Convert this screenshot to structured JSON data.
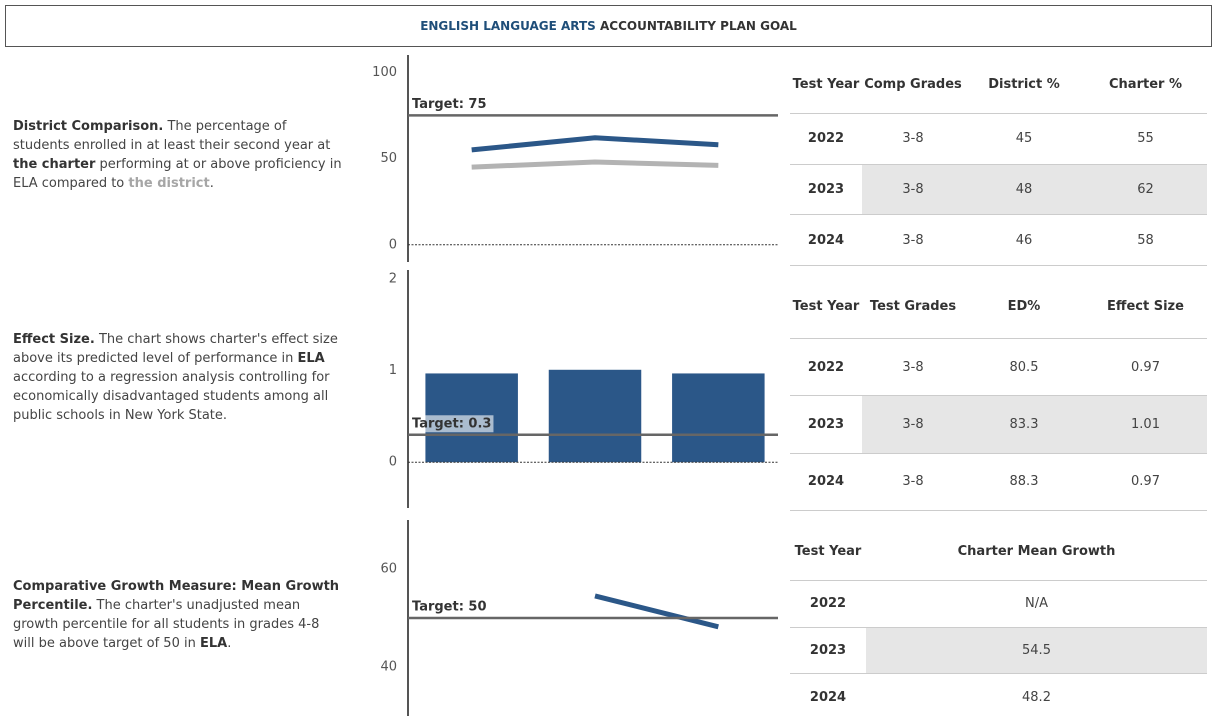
{
  "header": {
    "title_part1": "ENGLISH LANGUAGE ARTS",
    "title_part2": "ACCOUNTABILITY PLAN GOAL"
  },
  "sections": [
    {
      "description": [
        "District Comparison.",
        " The percentage of students enrolled in at least their second year at ",
        "the charter",
        " performing at or above proficiency in ELA compared to ",
        "the district",
        "."
      ]
    },
    {
      "description": [
        "Effect Size.",
        " The chart shows charter's effect size above its predicted level of performance in ",
        "ELA",
        " according to a regression analysis controlling for economically disadvantaged students among all public schools in New York State."
      ]
    },
    {
      "description": [
        "Comparative Growth Measure: Mean Growth Percentile.",
        "  The charter's unadjusted mean growth percentile for all students in grades 4-8 will be above target of 50 in ",
        "ELA",
        "."
      ]
    }
  ],
  "chart_data": [
    {
      "type": "line",
      "ylim": [
        -10,
        110
      ],
      "yticks": [
        0,
        50,
        100
      ],
      "zero_line": true,
      "target": {
        "value": 75,
        "label": "Target: 75"
      },
      "series": [
        {
          "color": "#2b5788",
          "values": [
            55,
            62,
            58
          ]
        },
        {
          "color": "#b3b3b3",
          "values": [
            45,
            48,
            46
          ]
        }
      ]
    },
    {
      "type": "bar",
      "ylim": [
        -0.5,
        2.1
      ],
      "yticks": [
        0,
        1,
        2
      ],
      "zero_line": true,
      "color": "#2b5788",
      "target": {
        "value": 0.3,
        "label": "Target: 0.3"
      },
      "values": [
        0.97,
        1.01,
        0.97
      ]
    },
    {
      "type": "line",
      "ylim": [
        30,
        70
      ],
      "yticks": [
        40,
        60
      ],
      "zero_line": false,
      "target": {
        "value": 50,
        "label": "Target: 50"
      },
      "series": [
        {
          "color": "#2b5788",
          "values": [
            null,
            54.5,
            48.2
          ]
        }
      ]
    }
  ],
  "tables": [
    {
      "header": [
        "Test Year",
        "Comp Grades",
        "District %",
        "Charter %"
      ],
      "rows": [
        [
          "2022",
          "3-8",
          "45",
          "55"
        ],
        [
          "2023",
          "3-8",
          "48",
          "62"
        ],
        [
          "2024",
          "3-8",
          "46",
          "58"
        ]
      ]
    },
    {
      "header": [
        "Test Year",
        "Test Grades",
        "ED%",
        "Effect Size"
      ],
      "rows": [
        [
          "2022",
          "3-8",
          "80.5",
          "0.97"
        ],
        [
          "2023",
          "3-8",
          "83.3",
          "1.01"
        ],
        [
          "2024",
          "3-8",
          "88.3",
          "0.97"
        ]
      ]
    },
    {
      "header": [
        "Test Year",
        "Charter Mean Growth"
      ],
      "rows": [
        [
          "2022",
          "N/A"
        ],
        [
          "2023",
          "54.5"
        ],
        [
          "2024",
          "48.2"
        ]
      ]
    }
  ]
}
